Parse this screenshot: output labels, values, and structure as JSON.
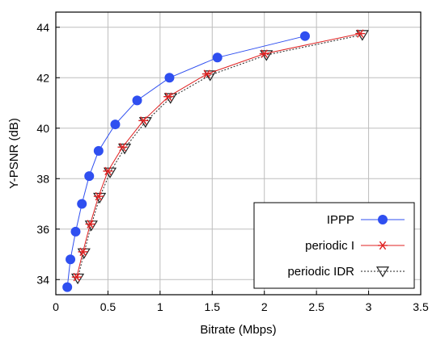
{
  "chart_data": {
    "type": "line",
    "title": "",
    "xlabel": "Bitrate (Mbps)",
    "ylabel": "Y-PSNR (dB)",
    "xlim": [
      0,
      3.5
    ],
    "ylim": [
      33.4,
      44.6
    ],
    "x_ticks": [
      0,
      0.5,
      1,
      1.5,
      2,
      2.5,
      3,
      3.5
    ],
    "x_tick_labels": [
      "0",
      "0.5",
      "1",
      "1.5",
      "2",
      "2.5",
      "3",
      "3.5"
    ],
    "y_ticks": [
      34,
      36,
      38,
      40,
      42,
      44
    ],
    "y_tick_labels": [
      "34",
      "36",
      "38",
      "40",
      "42",
      "44"
    ],
    "grid": true,
    "legend_position": "bottom-right",
    "series": [
      {
        "name": "IPPP",
        "marker": "filled-circle",
        "line_style": "solid",
        "color": "#2f4ff0",
        "x": [
          0.11,
          0.14,
          0.19,
          0.25,
          0.32,
          0.41,
          0.57,
          0.78,
          1.09,
          1.55,
          2.39
        ],
        "y": [
          33.7,
          34.8,
          35.9,
          37.0,
          38.1,
          39.1,
          40.15,
          41.1,
          42.0,
          42.8,
          43.65
        ]
      },
      {
        "name": "periodic I",
        "marker": "asterisk",
        "line_style": "solid",
        "color": "#e02020",
        "x": [
          0.2,
          0.26,
          0.33,
          0.41,
          0.5,
          0.64,
          0.84,
          1.08,
          1.45,
          2.0,
          2.92
        ],
        "y": [
          34.1,
          35.1,
          36.2,
          37.3,
          38.3,
          39.25,
          40.3,
          41.25,
          42.15,
          42.95,
          43.75
        ]
      },
      {
        "name": "periodic IDR",
        "marker": "open-triangle-down",
        "line_style": "dotted",
        "color": "#222222",
        "x": [
          0.21,
          0.27,
          0.34,
          0.42,
          0.52,
          0.66,
          0.86,
          1.1,
          1.48,
          2.02,
          2.94
        ],
        "y": [
          34.05,
          35.05,
          36.15,
          37.25,
          38.25,
          39.2,
          40.25,
          41.2,
          42.1,
          42.9,
          43.7
        ]
      }
    ]
  }
}
